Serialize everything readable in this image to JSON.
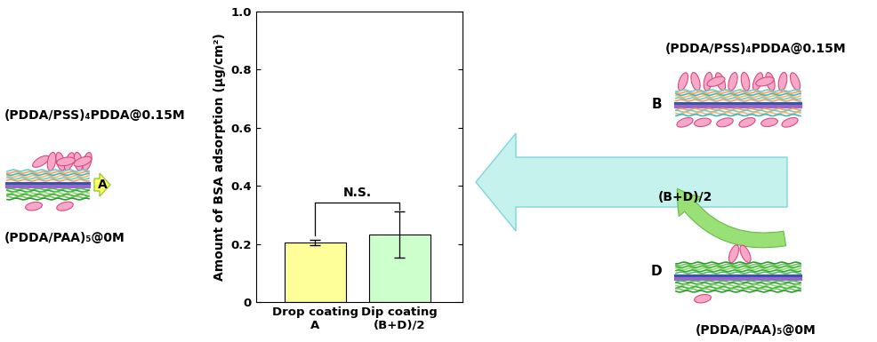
{
  "chart_data": {
    "type": "bar",
    "ylabel": "Amount of BSA adsorption (μg/cm²)",
    "categories": [
      "Drop coating\nA",
      "Dip coating\n(B+D)/2"
    ],
    "values": [
      0.205,
      0.233
    ],
    "errors": [
      0.01,
      0.08
    ],
    "colors": [
      "#ffff99",
      "#ccffcc"
    ],
    "ylim": [
      0,
      1.0
    ],
    "yticks": [
      0,
      0.2,
      0.4,
      0.6,
      0.8,
      1.0
    ],
    "significance": "N.S."
  },
  "diagram": {
    "left": {
      "top_label": "(PDDA/PSS)₄PDDA@0.15M",
      "bottom_label": "(PDDA/PAA)₅@0M",
      "arrow_label": "A"
    },
    "right": {
      "B": {
        "marker": "B",
        "label": "(PDDA/PSS)₄PDDA@0.15M"
      },
      "D": {
        "marker": "D",
        "label": "(PDDA/PAA)₅@0M"
      },
      "arrow_label": "(B+D)/2"
    }
  }
}
